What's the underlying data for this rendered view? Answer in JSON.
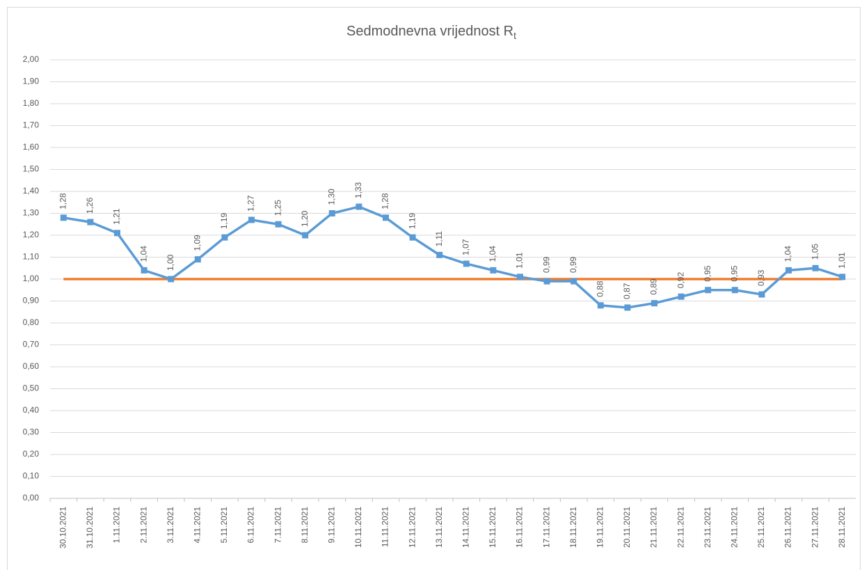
{
  "chart_data": {
    "type": "line",
    "title": "Sedmodnevna vrijednost R",
    "title_subscript": "t",
    "categories": [
      "30.10.2021",
      "31.10.2021",
      "1.11.2021",
      "2.11.2021",
      "3.11.2021",
      "4.11.2021",
      "5.11.2021",
      "6.11.2021",
      "7.11.2021",
      "8.11.2021",
      "9.11.2021",
      "10.11.2021",
      "11.11.2021",
      "12.11.2021",
      "13.11.2021",
      "14.11.2021",
      "15.11.2021",
      "16.11.2021",
      "17.11.2021",
      "18.11.2021",
      "19.11.2021",
      "20.11.2021",
      "21.11.2021",
      "22.11.2021",
      "23.11.2021",
      "24.11.2021",
      "25.11.2021",
      "26.11.2021",
      "27.11.2021",
      "28.11.2021"
    ],
    "series": [
      {
        "color": "#5b9bd5",
        "values": [
          1.28,
          1.26,
          1.21,
          1.04,
          1.0,
          1.09,
          1.19,
          1.27,
          1.25,
          1.2,
          1.3,
          1.33,
          1.28,
          1.19,
          1.11,
          1.07,
          1.04,
          1.01,
          0.99,
          0.99,
          0.88,
          0.87,
          0.89,
          0.92,
          0.95,
          0.95,
          0.93,
          1.04,
          1.05,
          1.01
        ],
        "value_labels": [
          "1,28",
          "1,26",
          "1,21",
          "1,04",
          "1,00",
          "1,09",
          "1,19",
          "1,27",
          "1,25",
          "1,20",
          "1,30",
          "1,33",
          "1,28",
          "1,19",
          "1,11",
          "1,07",
          "1,04",
          "1,01",
          "0,99",
          "0,99",
          "0,88",
          "0,87",
          "0,89",
          "0,92",
          "0,95",
          "0,95",
          "0,93",
          "1,04",
          "1,05",
          "1,01"
        ]
      }
    ],
    "reference_line": {
      "value": 1,
      "color": "#ed7d31"
    },
    "ylim": [
      0,
      2
    ],
    "yticks": [
      {
        "value": 0,
        "label": "0,00"
      },
      {
        "value": 0.1,
        "label": "0,10"
      },
      {
        "value": 0.2,
        "label": "0,20"
      },
      {
        "value": 0.3,
        "label": "0,30"
      },
      {
        "value": 0.4,
        "label": "0,40"
      },
      {
        "value": 0.5,
        "label": "0,50"
      },
      {
        "value": 0.6,
        "label": "0,60"
      },
      {
        "value": 0.7,
        "label": "0,70"
      },
      {
        "value": 0.8,
        "label": "0,80"
      },
      {
        "value": 0.9,
        "label": "0,90"
      },
      {
        "value": 1,
        "label": "1,00"
      },
      {
        "value": 1.1,
        "label": "1,10"
      },
      {
        "value": 1.2,
        "label": "1,20"
      },
      {
        "value": 1.3,
        "label": "1,30"
      },
      {
        "value": 1.4,
        "label": "1,40"
      },
      {
        "value": 1.5,
        "label": "1,50"
      },
      {
        "value": 1.6,
        "label": "1,60"
      },
      {
        "value": 1.7,
        "label": "1,70"
      },
      {
        "value": 1.8,
        "label": "1,80"
      },
      {
        "value": 1.9,
        "label": "1,90"
      },
      {
        "value": 2,
        "label": "2,00"
      }
    ],
    "grid": true
  }
}
